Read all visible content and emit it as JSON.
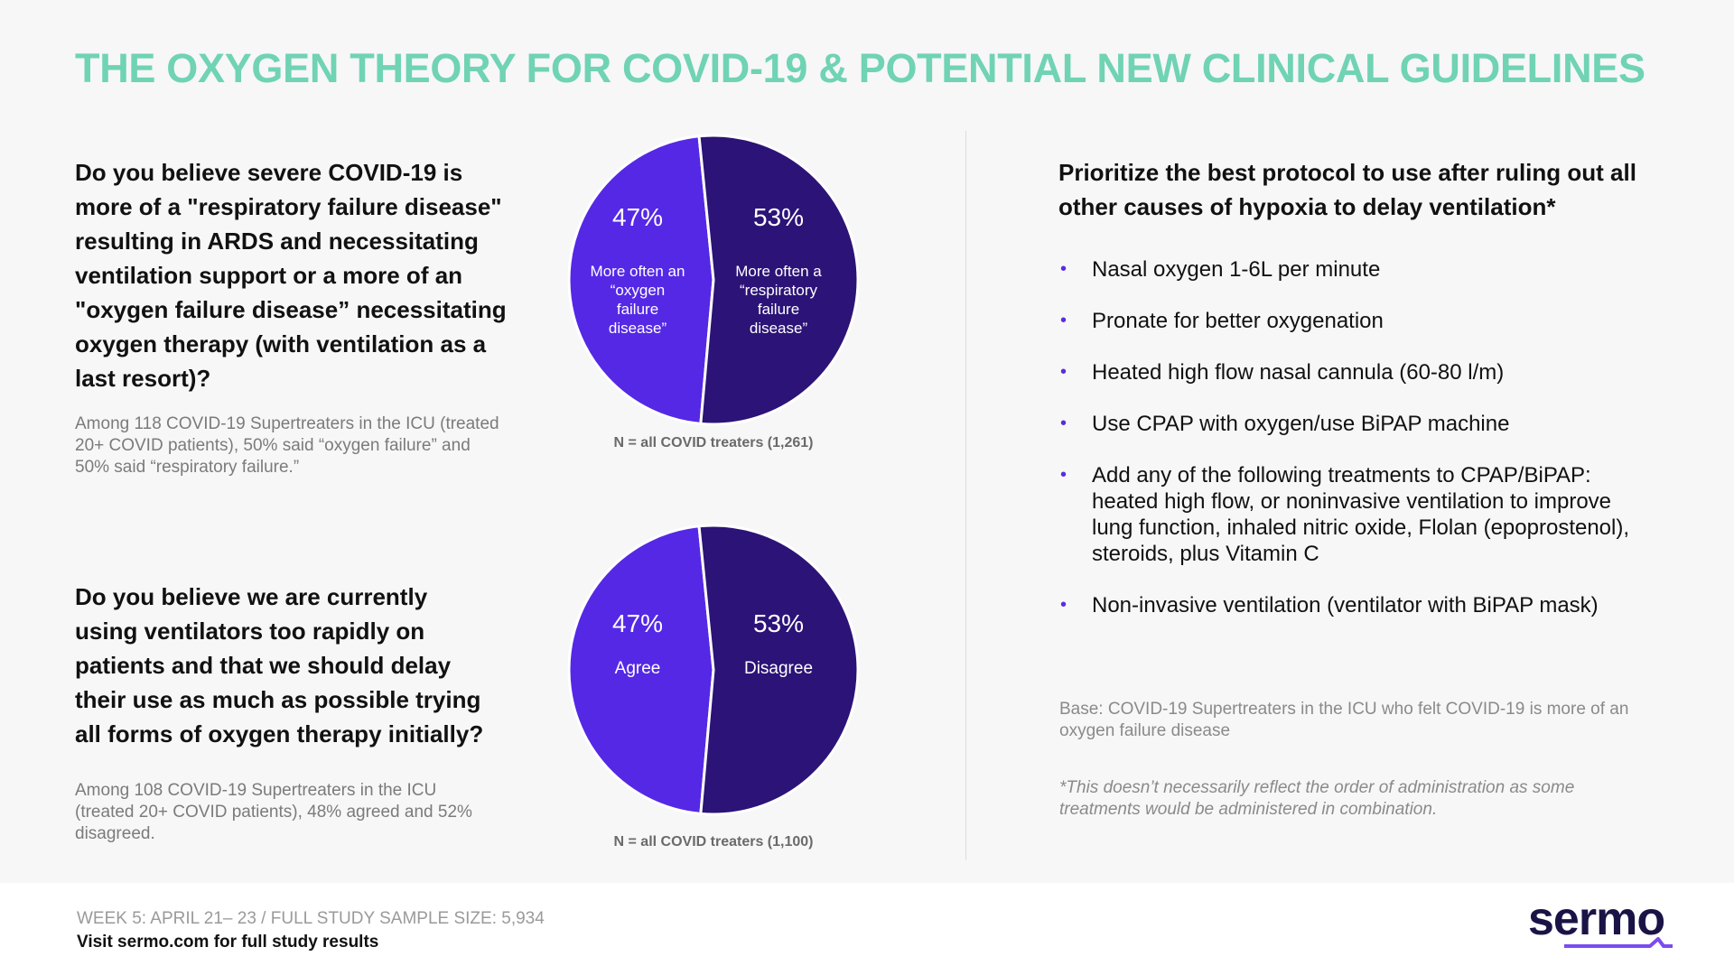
{
  "title": "THE OXYGEN THEORY FOR COVID-19 & POTENTIAL NEW CLINICAL GUIDELINES",
  "left": {
    "q1": "Do you believe severe COVID-19 is more of a \"respiratory failure disease\" resulting in ARDS and necessitating ventilation support or a more of an \"oxygen failure disease” necessitating oxygen therapy (with ventilation as a last resort)?",
    "note1": "Among 118 COVID-19 Supertreaters in the ICU (treated 20+ COVID patients), 50% said “oxygen failure” and 50% said “respiratory failure.”",
    "q2": "Do you believe we are currently using ventilators too rapidly on patients and that we should delay their use as much as possible trying all forms of oxygen therapy initially?",
    "note2": "Among 108 COVID-19 Supertreaters in the ICU (treated 20+ COVID patients), 48% agreed and 52% disagreed."
  },
  "chart_data": [
    {
      "type": "pie",
      "slices": [
        {
          "label": "More often an “oxygen failure disease”",
          "value": 47,
          "display": "47%",
          "color": "#5528e6"
        },
        {
          "label": "More often a “respiratory failure disease”",
          "value": 53,
          "display": "53%",
          "color": "#2c1377"
        }
      ],
      "footnote": "N = all COVID treaters (1,261)"
    },
    {
      "type": "pie",
      "slices": [
        {
          "label": "Agree",
          "value": 47,
          "display": "47%",
          "color": "#5528e6"
        },
        {
          "label": "Disagree",
          "value": 53,
          "display": "53%",
          "color": "#2c1377"
        }
      ],
      "footnote": "N = all COVID treaters (1,100)"
    }
  ],
  "right": {
    "question": "Prioritize the best protocol to use after ruling out all other causes of hypoxia to delay ventilation*",
    "bullets": [
      "Nasal oxygen 1-6L per minute",
      "Pronate for better oxygenation",
      "Heated high flow nasal cannula (60-80 l/m)",
      "Use CPAP with oxygen/use BiPAP machine",
      "Add any of the following treatments to CPAP/BiPAP: heated high flow, or noninvasive ventilation to improve lung function, inhaled nitric oxide, Flolan (epoprostenol), steroids,  plus Vitamin C",
      "Non-invasive ventilation (ventilator with BiPAP mask)"
    ],
    "base": "Base: COVID-19 Supertreaters in the ICU who felt COVID-19 is more of an oxygen failure disease",
    "disclaimer": "*This doesn’t necessarily reflect the order of administration as some treatments would be administered in combination."
  },
  "footer": {
    "week": "WEEK 5: APRIL 21– 23 / FULL STUDY SAMPLE SIZE: 5,934",
    "visit": "Visit sermo.com for full study results",
    "logo": "sermo"
  },
  "colors": {
    "title": "#6fd3b4",
    "bullet": "#5b2be0"
  }
}
